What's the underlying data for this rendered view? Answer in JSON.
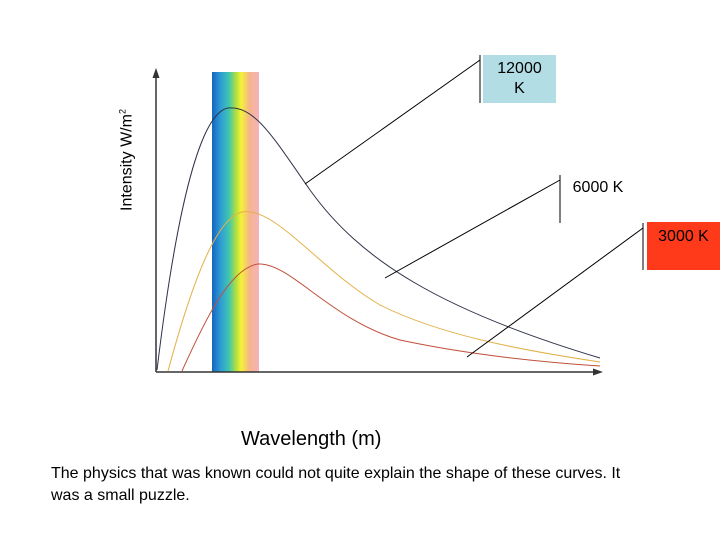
{
  "figure": {
    "y_label": "Intensity W/m",
    "y_label_sup": "2",
    "x_label": "Wavelength (m)",
    "caption": "The physics that was known could not quite explain the shape of these curves. It was a small puzzle.",
    "labels": [
      {
        "id": "12000",
        "line1": "12000",
        "line2": "K",
        "color": "#b3dde5"
      },
      {
        "id": "6000",
        "text": "6000 K",
        "color": "#ffffff"
      },
      {
        "id": "3000",
        "text": "3000 K",
        "color": "#ff3a1a"
      }
    ],
    "curves": [
      {
        "id": "12000",
        "color": "#2f3447"
      },
      {
        "id": "6000",
        "color": "#e3b14a"
      },
      {
        "id": "3000",
        "color": "#c0503a"
      }
    ],
    "spectrum_colors": [
      "#1565c0",
      "#2e9bd6",
      "#3fc6b0",
      "#b7e13a",
      "#f6f03a",
      "#f6b58a",
      "#f5b2bd"
    ],
    "axis_color": "#333333"
  }
}
